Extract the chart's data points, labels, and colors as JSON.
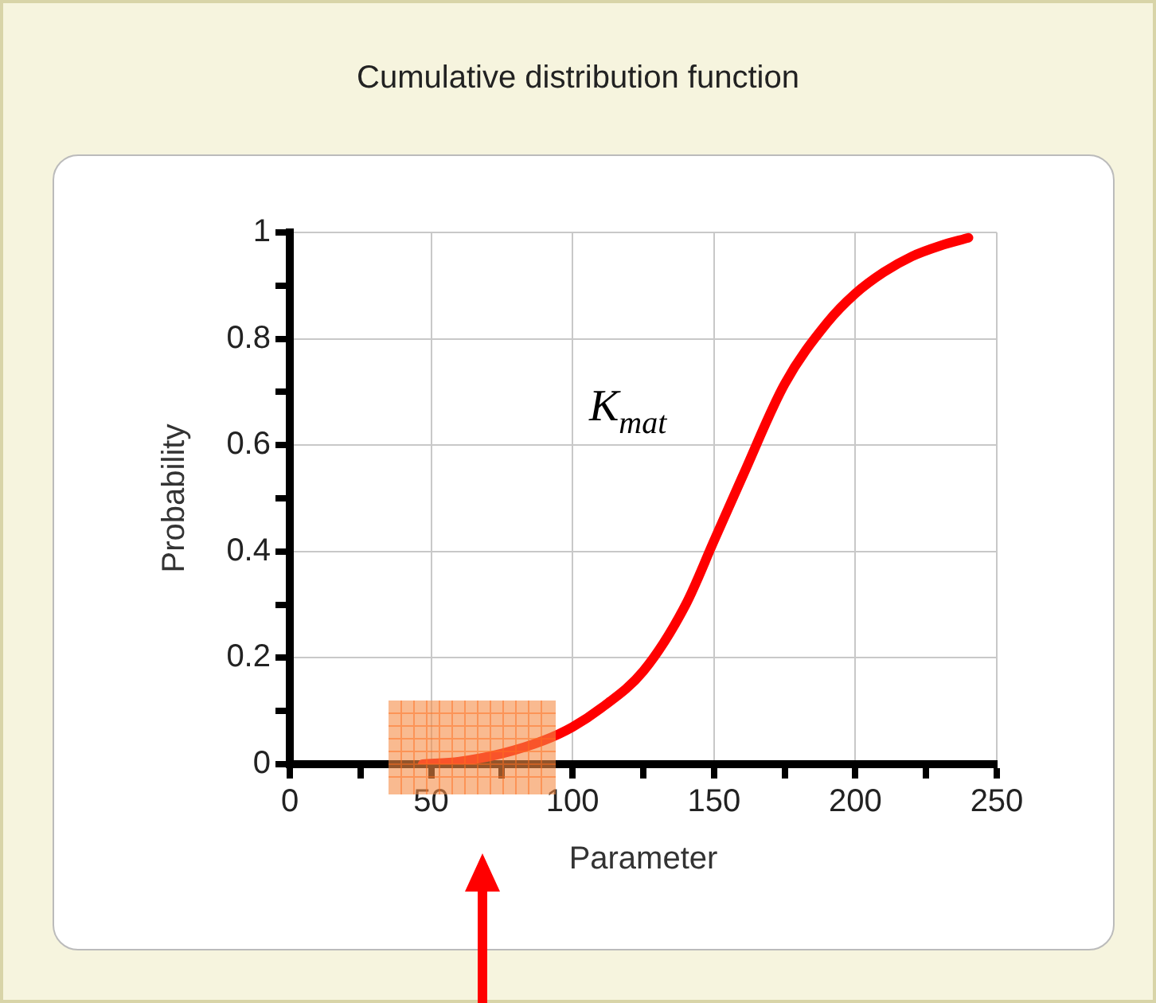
{
  "chart_data": {
    "type": "line",
    "title": "Cumulative distribution function",
    "xlabel": "Parameter",
    "ylabel": "Probability",
    "x": [
      47,
      60,
      75,
      90,
      100,
      110,
      125,
      140,
      150,
      160,
      175,
      190,
      200,
      210,
      220,
      230,
      240
    ],
    "series": [
      {
        "color": "#ff0000",
        "values": [
          0,
          0.005,
          0.02,
          0.045,
          0.07,
          0.105,
          0.175,
          0.3,
          0.42,
          0.54,
          0.715,
          0.83,
          0.885,
          0.925,
          0.955,
          0.975,
          0.99
        ]
      }
    ],
    "xlim": [
      0,
      250
    ],
    "ylim": [
      0,
      1
    ],
    "xticks": [
      0,
      {
        "value": 25,
        "label": null
      },
      50,
      {
        "value": 75,
        "label": null
      },
      100,
      {
        "value": 125,
        "label": null
      },
      150,
      {
        "value": 175,
        "label": null
      },
      200,
      {
        "value": 225,
        "label": null
      },
      250
    ],
    "yticks": [
      0,
      {
        "value": 0.1,
        "label": null
      },
      {
        "value": 0.2,
        "label": "0.2"
      },
      {
        "value": 0.3,
        "label": null
      },
      {
        "value": 0.4,
        "label": "0.4"
      },
      {
        "value": 0.5,
        "label": null
      },
      {
        "value": 0.6,
        "label": "0.6"
      },
      {
        "value": 0.7,
        "label": null
      },
      {
        "value": 0.8,
        "label": "0.8"
      },
      {
        "value": 0.9,
        "label": null
      },
      1
    ],
    "annotations": [
      "K$_{mat}$"
    ],
    "grid": true,
    "legend": false,
    "marker": "none",
    "line_style": "solid"
  }
}
